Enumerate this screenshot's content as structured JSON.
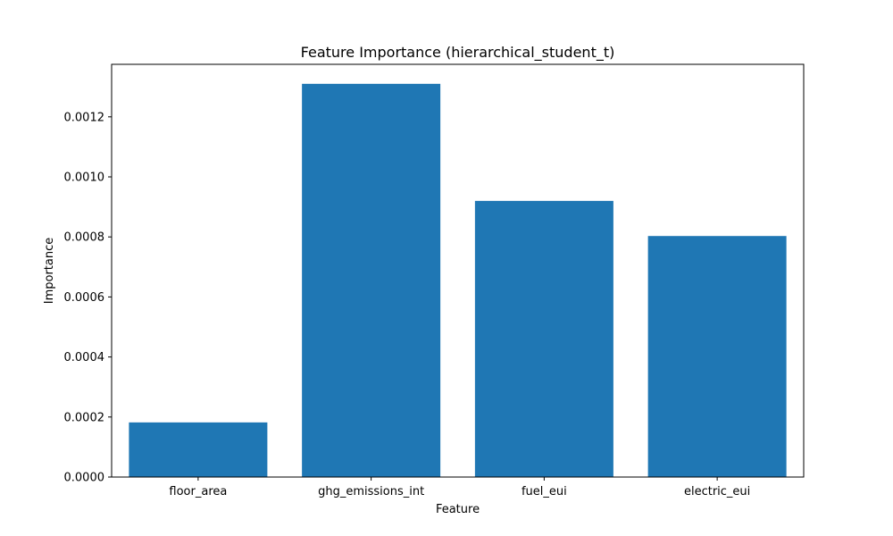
{
  "chart_data": {
    "type": "bar",
    "title": "Feature Importance (hierarchical_student_t)",
    "xlabel": "Feature",
    "ylabel": "Importance",
    "categories": [
      "floor_area",
      "ghg_emissions_int",
      "fuel_eui",
      "electric_eui"
    ],
    "values": [
      0.000182,
      0.00131,
      0.00092,
      0.000803
    ],
    "ylim": [
      0,
      0.001375
    ],
    "yticks": [
      0.0,
      0.0002,
      0.0004,
      0.0006,
      0.0008,
      0.001,
      0.0012
    ],
    "ytick_labels": [
      "0.0000",
      "0.0002",
      "0.0004",
      "0.0006",
      "0.0008",
      "0.0010",
      "0.0012"
    ],
    "bar_color": "#1f77b4",
    "grid": false,
    "legend": false
  }
}
